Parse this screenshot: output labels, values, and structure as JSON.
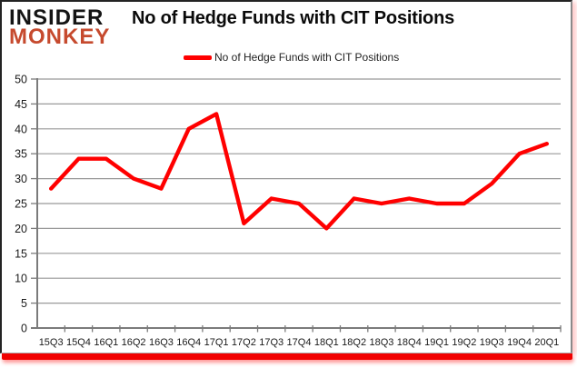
{
  "logo": {
    "line1": "INSIDER",
    "line2": "MONKEY"
  },
  "header": {
    "title": "No of Hedge Funds with CIT Positions"
  },
  "legend": {
    "label": "No of Hedge Funds with CIT Positions"
  },
  "colors": {
    "line": "#FF0000",
    "logo_accent": "#C64A2E",
    "logo_dark": "#141414",
    "bottom_bar": "#F10000",
    "grid": "#999999",
    "axis": "#7B7B7B",
    "text": "#1A1A1A"
  },
  "chart_data": {
    "type": "line",
    "title": "No of Hedge Funds with CIT Positions",
    "categories": [
      "15Q3",
      "15Q4",
      "16Q1",
      "16Q2",
      "16Q3",
      "16Q4",
      "17Q1",
      "17Q2",
      "17Q3",
      "17Q4",
      "18Q1",
      "18Q2",
      "18Q3",
      "18Q4",
      "19Q1",
      "19Q2",
      "19Q3",
      "19Q4",
      "20Q1"
    ],
    "series": [
      {
        "name": "No of Hedge Funds with CIT Positions",
        "values": [
          28,
          34,
          34,
          30,
          28,
          40,
          43,
          21,
          26,
          25,
          20,
          26,
          25,
          26,
          25,
          25,
          29,
          35,
          37
        ]
      }
    ],
    "xlabel": "",
    "ylabel": "",
    "ylim": [
      0,
      50
    ],
    "ytick_step": 5,
    "grid": true,
    "legend_position": "top"
  }
}
